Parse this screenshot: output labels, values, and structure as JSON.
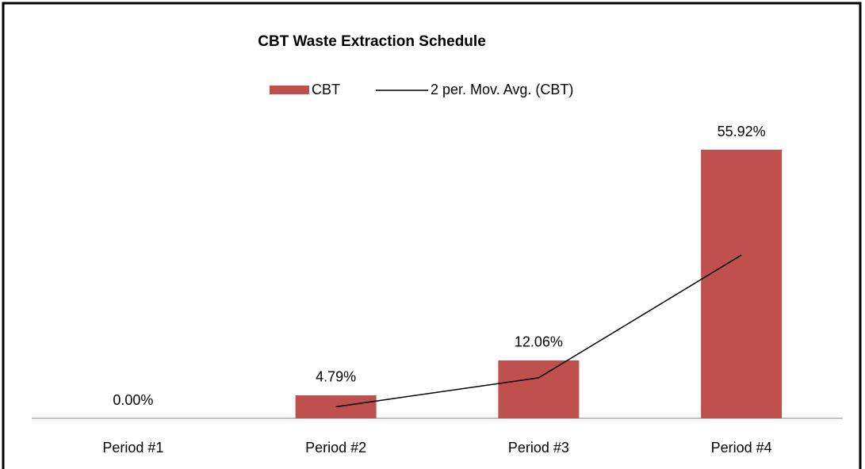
{
  "chart_data": {
    "type": "bar",
    "title": "CBT Waste Extraction Schedule",
    "categories": [
      "Period #1",
      "Period #2",
      "Period #3",
      "Period #4"
    ],
    "series": [
      {
        "name": "CBT",
        "type": "bar",
        "color": "#c0504d",
        "values": [
          0,
          4.79,
          12.06,
          55.92
        ],
        "value_labels": [
          "0.00%",
          "4.79%",
          "12.06%",
          "55.92%"
        ]
      },
      {
        "name": "2 per. Mov. Avg. (CBT)",
        "type": "line",
        "color": "#000000",
        "values": [
          null,
          2.395,
          8.425,
          33.99
        ]
      }
    ],
    "legend": "top"
  }
}
